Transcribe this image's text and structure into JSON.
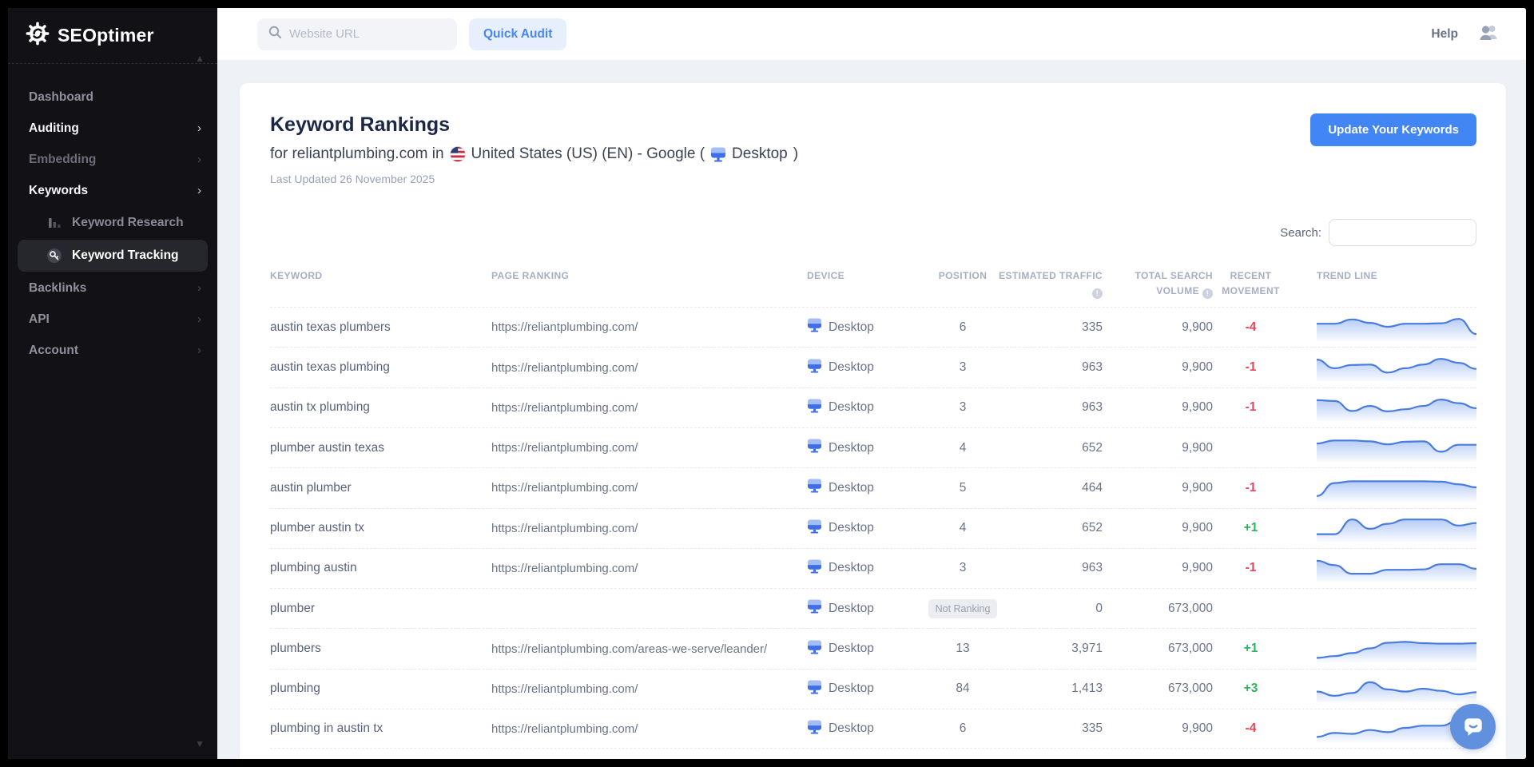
{
  "app": {
    "name": "SEOptimer"
  },
  "sidebar": {
    "logo_text": "SEOptimer",
    "items": [
      {
        "label": "Dashboard",
        "chevron": false,
        "style": "normal"
      },
      {
        "label": "Auditing",
        "chevron": true,
        "style": "bright"
      },
      {
        "label": "Embedding",
        "chevron": true,
        "style": "dim"
      },
      {
        "label": "Keywords",
        "chevron": true,
        "style": "bright"
      },
      {
        "label": "Keyword Research",
        "type": "sub",
        "icon": "bar-chart-icon",
        "active": false
      },
      {
        "label": "Keyword Tracking",
        "type": "sub",
        "icon": "key-icon",
        "active": true
      },
      {
        "label": "Backlinks",
        "chevron": true,
        "style": "normal"
      },
      {
        "label": "API",
        "chevron": true,
        "style": "normal"
      },
      {
        "label": "Account",
        "chevron": true,
        "style": "normal"
      }
    ]
  },
  "topbar": {
    "search_placeholder": "Website URL",
    "quick_audit_label": "Quick Audit",
    "help_label": "Help"
  },
  "header": {
    "title": "Keyword Rankings",
    "subtitle_prefix": "for reliantplumbing.com in",
    "subtitle_location": "United States (US) (EN) - Google (",
    "subtitle_device": "Desktop",
    "subtitle_suffix": ")",
    "last_updated": "Last Updated 26 November 2025",
    "update_button_label": "Update Your Keywords"
  },
  "table": {
    "search_label": "Search:",
    "search_value": "",
    "columns": [
      {
        "label": "KEYWORD",
        "info": false
      },
      {
        "label": "PAGE RANKING",
        "info": false
      },
      {
        "label": "DEVICE",
        "info": false
      },
      {
        "label": "POSITION",
        "info": false
      },
      {
        "label": "ESTIMATED TRAFFIC",
        "info": true
      },
      {
        "label": "TOTAL SEARCH VOLUME",
        "info": true
      },
      {
        "label": "RECENT MOVEMENT",
        "info": false
      },
      {
        "label": "TREND LINE",
        "info": false
      }
    ],
    "not_ranking_label": "Not Ranking",
    "device_label": "Desktop",
    "rows": [
      {
        "keyword": "austin texas plumbers",
        "page": "https://reliantplumbing.com/",
        "device": "Desktop",
        "position": "6",
        "traffic": "335",
        "volume": "9,900",
        "movement": "-4",
        "spark": [
          0.66,
          0.66,
          0.86,
          0.7,
          0.52,
          0.66,
          0.66,
          0.68,
          0.88,
          0.18
        ]
      },
      {
        "keyword": "austin texas plumbing",
        "page": "https://reliantplumbing.com/",
        "device": "Desktop",
        "position": "3",
        "traffic": "963",
        "volume": "9,900",
        "movement": "-1",
        "spark": [
          0.85,
          0.45,
          0.6,
          0.62,
          0.25,
          0.45,
          0.62,
          0.88,
          0.7,
          0.42
        ]
      },
      {
        "keyword": "austin tx plumbing",
        "page": "https://reliantplumbing.com/",
        "device": "Desktop",
        "position": "3",
        "traffic": "963",
        "volume": "9,900",
        "movement": "-1",
        "spark": [
          0.82,
          0.78,
          0.32,
          0.55,
          0.3,
          0.4,
          0.55,
          0.85,
          0.68,
          0.45
        ]
      },
      {
        "keyword": "plumber austin texas",
        "page": "https://reliantplumbing.com/",
        "device": "Desktop",
        "position": "4",
        "traffic": "652",
        "volume": "9,900",
        "movement": "",
        "spark": [
          0.7,
          0.84,
          0.84,
          0.8,
          0.66,
          0.78,
          0.8,
          0.32,
          0.64,
          0.64
        ]
      },
      {
        "keyword": "austin plumber",
        "page": "https://reliantplumbing.com/",
        "device": "Desktop",
        "position": "5",
        "traffic": "464",
        "volume": "9,900",
        "movement": "-1",
        "spark": [
          0.12,
          0.72,
          0.8,
          0.8,
          0.8,
          0.8,
          0.8,
          0.78,
          0.66,
          0.52
        ]
      },
      {
        "keyword": "plumber austin tx",
        "page": "https://reliantplumbing.com/",
        "device": "Desktop",
        "position": "4",
        "traffic": "652",
        "volume": "9,900",
        "movement": "+1",
        "spark": [
          0.2,
          0.2,
          0.88,
          0.45,
          0.68,
          0.88,
          0.88,
          0.88,
          0.6,
          0.72
        ]
      },
      {
        "keyword": "plumbing austin",
        "page": "https://reliantplumbing.com/",
        "device": "Desktop",
        "position": "3",
        "traffic": "963",
        "volume": "9,900",
        "movement": "-1",
        "spark": [
          0.82,
          0.62,
          0.22,
          0.22,
          0.4,
          0.4,
          0.42,
          0.66,
          0.66,
          0.45
        ]
      },
      {
        "keyword": "plumber",
        "page": "",
        "device": "Desktop",
        "position": "Not Ranking",
        "not_ranking": true,
        "traffic": "0",
        "volume": "673,000",
        "movement": "",
        "spark": null
      },
      {
        "keyword": "plumbers",
        "page": "https://reliantplumbing.com/areas-we-serve/leander/",
        "device": "Desktop",
        "position": "13",
        "traffic": "3,971",
        "volume": "673,000",
        "movement": "+1",
        "spark": [
          0.06,
          0.14,
          0.28,
          0.5,
          0.76,
          0.8,
          0.74,
          0.72,
          0.72,
          0.74
        ]
      },
      {
        "keyword": "plumbing",
        "page": "https://reliantplumbing.com/",
        "device": "Desktop",
        "position": "84",
        "traffic": "1,413",
        "volume": "673,000",
        "movement": "+3",
        "spark": [
          0.35,
          0.15,
          0.28,
          0.78,
          0.45,
          0.35,
          0.48,
          0.38,
          0.22,
          0.32
        ]
      },
      {
        "keyword": "plumbing in austin tx",
        "page": "https://reliantplumbing.com/",
        "device": "Desktop",
        "position": "6",
        "traffic": "335",
        "volume": "9,900",
        "movement": "-4",
        "spark": [
          0.1,
          0.28,
          0.24,
          0.42,
          0.32,
          0.52,
          0.62,
          0.62,
          0.86,
          0.14
        ]
      }
    ]
  },
  "colors": {
    "accent_blue": "#4285f4",
    "negative_red": "#f4415a",
    "positive_green": "#25b95d",
    "sparkline_blue": "#4a7ce0"
  }
}
